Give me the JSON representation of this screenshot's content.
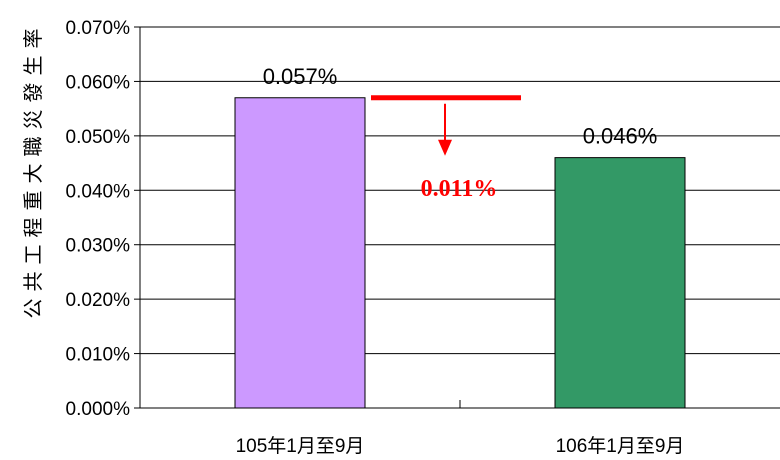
{
  "chart_data": {
    "type": "bar",
    "title": "",
    "xlabel": "",
    "ylabel": "公共工程重大職災發生率",
    "categories": [
      "105年1月至9月",
      "106年1月至9月"
    ],
    "values": [
      0.057,
      0.046
    ],
    "value_labels": [
      "0.057%",
      "0.046%"
    ],
    "bar_colors": [
      "#cc99ff",
      "#339966"
    ],
    "ylim": [
      0,
      0.07
    ],
    "yticks": [
      0,
      0.01,
      0.02,
      0.03,
      0.04,
      0.05,
      0.06,
      0.07
    ],
    "ytick_labels": [
      "0.000%",
      "0.010%",
      "0.020%",
      "0.030%",
      "0.040%",
      "0.050%",
      "0.060%",
      "0.070%"
    ],
    "grid": true,
    "annotation": {
      "text": "0.011%",
      "color": "#ff0000",
      "kind": "decrease-arrow"
    }
  }
}
